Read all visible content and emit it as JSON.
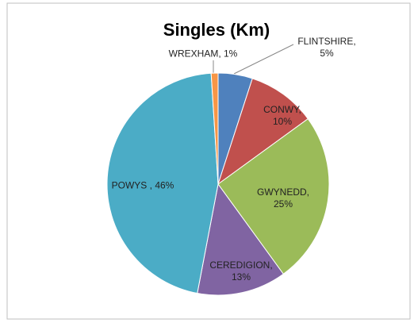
{
  "chart_data": {
    "type": "pie",
    "title": "Singles (Km)",
    "values": [
      5,
      10,
      25,
      13,
      46,
      1
    ],
    "value_labels": [
      "FLINTSHIRE, 5%",
      "CONWY, 10%",
      "GWYNEDD, 25%",
      "CEREDIGION, 13%",
      "POWYS , 46%",
      "WREXHAM, 1%"
    ],
    "colors": [
      "#4f81bd",
      "#c0504d",
      "#9bbb59",
      "#8064a2",
      "#4bacc6",
      "#f79646"
    ]
  }
}
